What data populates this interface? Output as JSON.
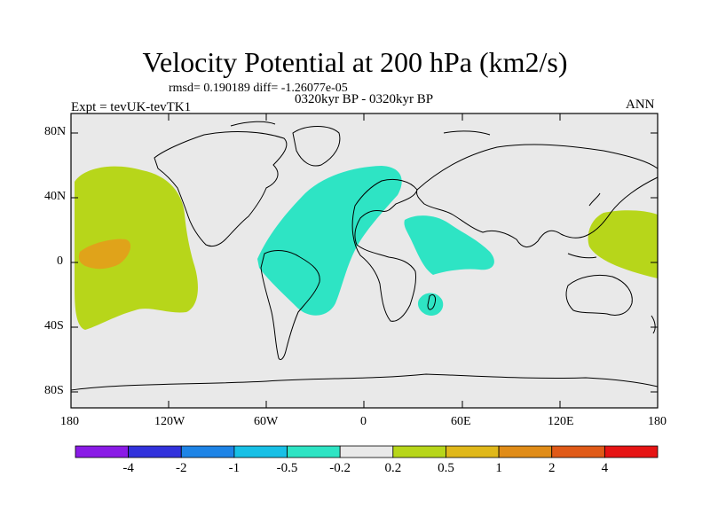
{
  "title": "Velocity Potential at 200 hPa (km2/s)",
  "stats_line": "rmsd= 0.190189 diff= -1.26077e-05",
  "period_line": "0320kyr BP - 0320kyr BP",
  "experiment": "Expt = tevUK-tevTK1",
  "season": "ANN",
  "axes": {
    "y_ticks": [
      "80N",
      "40N",
      "0",
      "40S",
      "80S"
    ],
    "x_ticks": [
      "180",
      "120W",
      "60W",
      "0",
      "60E",
      "120E",
      "180"
    ]
  },
  "colors": {
    "land_fill": "#e9e9e9",
    "coast": "#000000",
    "cyan_region": "#2ee4c4",
    "yellowgreen_region": "#b7d61a",
    "orange_region": "#e0a31a"
  },
  "colorbar": {
    "colors": [
      "#8a1be6",
      "#3232dc",
      "#1e84e6",
      "#18c0e6",
      "#2ee4c4",
      "#e9e9e9",
      "#b7d61a",
      "#e0b81a",
      "#e08c18",
      "#e05a18",
      "#e61414"
    ],
    "labels": [
      "-4",
      "-2",
      "-1",
      "-0.5",
      "-0.2",
      "0.2",
      "0.5",
      "1",
      "2",
      "4"
    ]
  }
}
